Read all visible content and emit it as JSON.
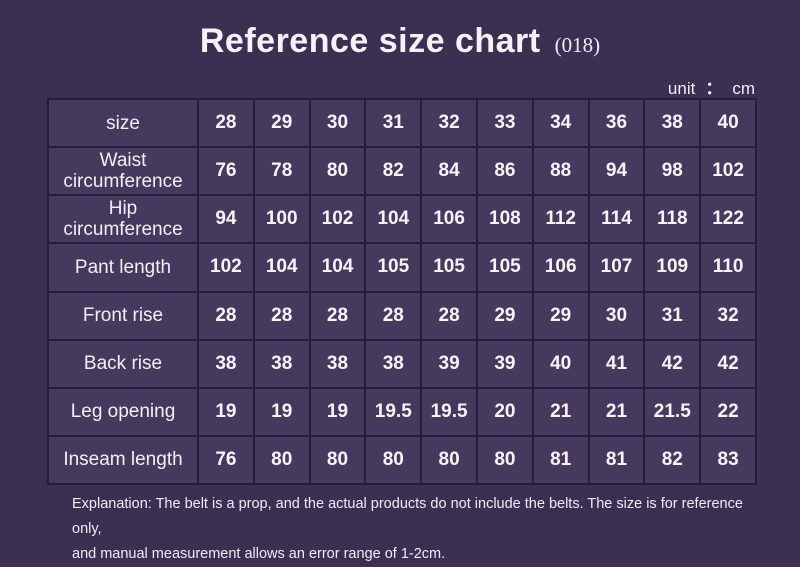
{
  "title": {
    "main": "Reference size chart",
    "suffix": "(018)"
  },
  "unit": {
    "label": "unit",
    "separator": "：",
    "value": "cm"
  },
  "chart_data": {
    "type": "table",
    "title": "Reference size chart (018)",
    "unit": "cm",
    "columns": [
      "28",
      "29",
      "30",
      "31",
      "32",
      "33",
      "34",
      "36",
      "38",
      "40"
    ],
    "rows": [
      {
        "label": "size",
        "values": [
          "28",
          "29",
          "30",
          "31",
          "32",
          "33",
          "34",
          "36",
          "38",
          "40"
        ]
      },
      {
        "label": "Waist circumference",
        "values": [
          "76",
          "78",
          "80",
          "82",
          "84",
          "86",
          "88",
          "94",
          "98",
          "102"
        ]
      },
      {
        "label": "Hip circumference",
        "values": [
          "94",
          "100",
          "102",
          "104",
          "106",
          "108",
          "112",
          "114",
          "118",
          "122"
        ]
      },
      {
        "label": "Pant length",
        "values": [
          "102",
          "104",
          "104",
          "105",
          "105",
          "105",
          "106",
          "107",
          "109",
          "110"
        ]
      },
      {
        "label": "Front rise",
        "values": [
          "28",
          "28",
          "28",
          "28",
          "28",
          "29",
          "29",
          "30",
          "31",
          "32"
        ]
      },
      {
        "label": "Back rise",
        "values": [
          "38",
          "38",
          "38",
          "38",
          "39",
          "39",
          "40",
          "41",
          "42",
          "42"
        ]
      },
      {
        "label": "Leg opening",
        "values": [
          "19",
          "19",
          "19",
          "19.5",
          "19.5",
          "20",
          "21",
          "21",
          "21.5",
          "22"
        ]
      },
      {
        "label": "Inseam length",
        "values": [
          "76",
          "80",
          "80",
          "80",
          "80",
          "80",
          "81",
          "81",
          "82",
          "83"
        ]
      }
    ]
  },
  "footer": {
    "line1": "Explanation: The belt is a prop, and the actual products do not include the belts. The size is for reference only,",
    "line2": "and manual measurement allows an error range of 1-2cm."
  },
  "colors": {
    "background": "#3b3052",
    "cell_fill": "#453a5d",
    "border": "#241d36",
    "text": "#f3f1f8"
  }
}
